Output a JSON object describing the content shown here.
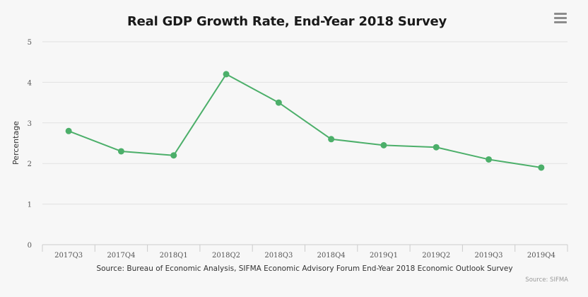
{
  "chart_data": {
    "type": "line",
    "title": "Real GDP Growth Rate, End-Year 2018 Survey",
    "xlabel": "",
    "ylabel": "Percentage",
    "categories": [
      "2017Q3",
      "2017Q4",
      "2018Q1",
      "2018Q2",
      "2018Q3",
      "2018Q4",
      "2019Q1",
      "2019Q2",
      "2019Q3",
      "2019Q4"
    ],
    "series": [
      {
        "name": "Real GDP Growth Rate",
        "values": [
          2.8,
          2.3,
          2.2,
          4.2,
          3.5,
          2.6,
          2.45,
          2.4,
          2.1,
          1.9
        ],
        "color": "#4caf6a"
      }
    ],
    "ylim": [
      0,
      5
    ],
    "yticks": [
      0,
      1,
      2,
      3,
      4,
      5
    ],
    "grid": true,
    "legend": "none",
    "source": "Source: Bureau of Economic Analysis, SIFMA Economic Advisory Forum End-Year 2018 Economic Outlook Survey",
    "credit": "Source: SIFMA"
  },
  "colors": {
    "background": "#f7f7f7",
    "grid": "#e2e2e2",
    "line": "#4caf6a",
    "axis": "#cccccc"
  },
  "menu": {
    "icon": "hamburger-menu-icon"
  }
}
